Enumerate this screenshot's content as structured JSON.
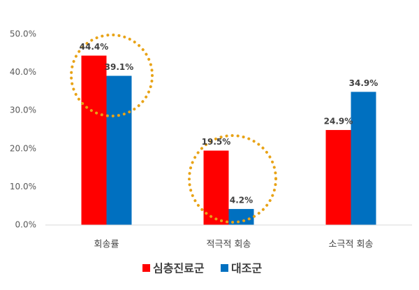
{
  "chart_data": {
    "type": "bar",
    "categories": [
      "회송률",
      "적극적 회송",
      "소극적 회송"
    ],
    "series": [
      {
        "name": "심층진료군",
        "color": "#ff0000",
        "values": [
          44.4,
          19.5,
          24.9
        ],
        "value_labels": [
          "44.4%",
          "19.5%",
          "24.9%"
        ]
      },
      {
        "name": "대조군",
        "color": "#0070c0",
        "values": [
          39.1,
          4.2,
          34.9
        ],
        "value_labels": [
          "39.1%",
          "4.2%",
          "34.9%"
        ]
      }
    ],
    "ylim": [
      0,
      50
    ],
    "yticks": [
      {
        "value": 0,
        "label": "0.0%"
      },
      {
        "value": 10,
        "label": "10.0%"
      },
      {
        "value": 20,
        "label": "20.0%"
      },
      {
        "value": 30,
        "label": "30.0%"
      },
      {
        "value": 40,
        "label": "40.0%"
      },
      {
        "value": 50,
        "label": "50.0%"
      }
    ],
    "grid": false,
    "legend": "bottom"
  }
}
